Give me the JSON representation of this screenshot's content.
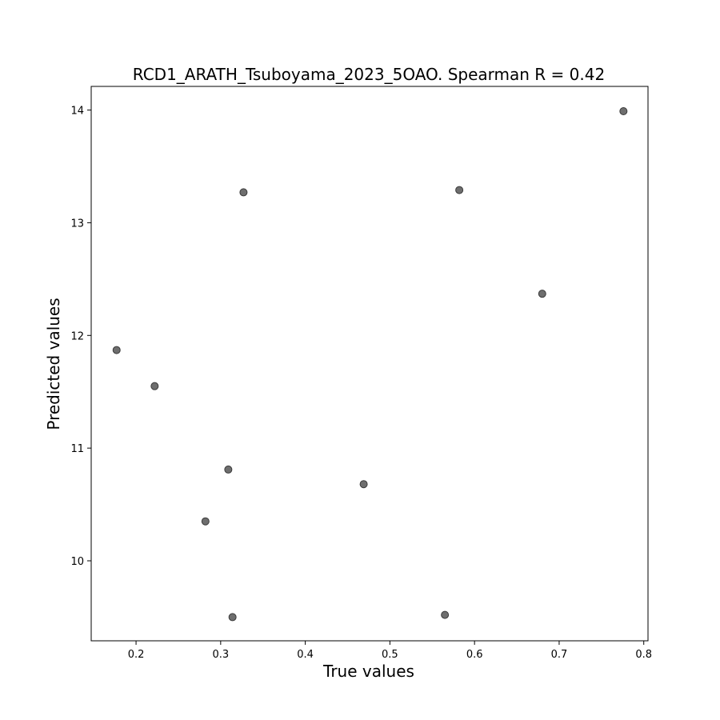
{
  "chart_data": {
    "type": "scatter",
    "title": "RCD1_ARATH_Tsuboyama_2023_5OAO. Spearman R = 0.42",
    "xlabel": "True values",
    "ylabel": "Predicted values",
    "xlim": [
      0.147,
      0.805
    ],
    "ylim": [
      9.29,
      14.21
    ],
    "xticks": [
      0.2,
      0.3,
      0.4,
      0.5,
      0.6,
      0.7,
      0.8
    ],
    "xtick_labels": [
      "0.2",
      "0.3",
      "0.4",
      "0.5",
      "0.6",
      "0.7",
      "0.8"
    ],
    "yticks": [
      10,
      11,
      12,
      13,
      14
    ],
    "ytick_labels": [
      "10",
      "11",
      "12",
      "13",
      "14"
    ],
    "grid": false,
    "legend": "none",
    "marker_color": "#6e6e6e",
    "series": [
      {
        "x": [
          0.776,
          0.327,
          0.582,
          0.68,
          0.177,
          0.222,
          0.309,
          0.469,
          0.282,
          0.314,
          0.565
        ],
        "y": [
          13.99,
          13.27,
          13.29,
          12.37,
          11.87,
          11.55,
          10.81,
          10.68,
          10.35,
          9.5,
          9.52
        ]
      }
    ]
  }
}
